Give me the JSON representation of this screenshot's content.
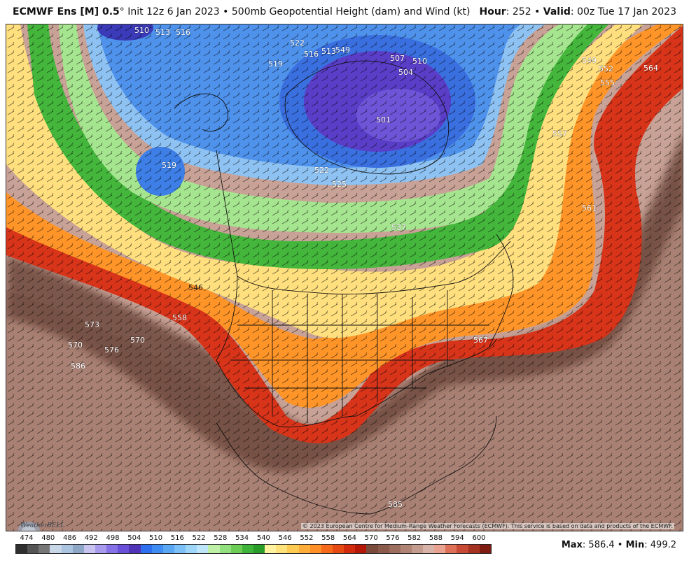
{
  "header": {
    "model": "ECMWF Ens [M] 0.5",
    "degree": "°",
    "init": "Init 12z 6 Jan 2023",
    "bullet1": "•",
    "product": "500mb Geopotential Height (dam) and Wind (kt)",
    "hour_label": "Hour",
    "hour_value": ": 252",
    "bullet2": "•",
    "valid_label": "Valid",
    "valid_value": ": 00z Tue 17 Jan 2023"
  },
  "map": {
    "contour_labels": [
      "510",
      "513",
      "516",
      "522",
      "516",
      "513",
      "507",
      "510",
      "504",
      "519",
      "501",
      "519",
      "522",
      "525",
      "537",
      "546",
      "558",
      "573",
      "570",
      "576",
      "570",
      "586",
      "567",
      "549",
      "552",
      "555",
      "564",
      "557",
      "561",
      "585",
      "549"
    ],
    "copyright": "© 2023 European Centre for Medium-Range Weather Forecasts (ECMWF). This service is based on data and products of the ECMWF.",
    "logo_text": "WeatherBELL"
  },
  "colorbar": {
    "ticks": [
      "474",
      "480",
      "486",
      "492",
      "498",
      "504",
      "510",
      "516",
      "522",
      "528",
      "534",
      "540",
      "546",
      "552",
      "558",
      "564",
      "570",
      "576",
      "582",
      "588",
      "594",
      "600"
    ],
    "colors": [
      "#2f2f2f",
      "#555555",
      "#777777",
      "#c8d7e8",
      "#aac3de",
      "#8ea7c6",
      "#c9c3f0",
      "#a89bee",
      "#8672e6",
      "#6a4fd8",
      "#4f34b8",
      "#2e6ff0",
      "#3f8df2",
      "#5aa7f4",
      "#7cc0f7",
      "#9ed6fa",
      "#bde6fb",
      "#bff0a8",
      "#93e07f",
      "#6ccc56",
      "#3fb43a",
      "#2a9c2a",
      "#fff3a0",
      "#ffe27a",
      "#ffca52",
      "#ffad38",
      "#ff8f26",
      "#f56a1a",
      "#e64a12",
      "#d22a0c",
      "#b51706",
      "#7a4a3a",
      "#8a5a4a",
      "#9c6e5e",
      "#af8474",
      "#c49c8e",
      "#d8b4a8",
      "#e8a28f",
      "#dd7056",
      "#c84a34",
      "#a63222",
      "#7e1c12"
    ],
    "max_label": "Max",
    "max_value": ": 586.4",
    "min_label": "Min",
    "min_value": ": 499.2",
    "bullet": "•"
  },
  "colors": {
    "low_center": "#4526b8",
    "deep_blue": "#3a6fe0",
    "light_blue": "#8fc4f4",
    "green": "#3fae3a",
    "light_green": "#a9e69a",
    "yellow": "#ffeb9a",
    "orange": "#ffad38",
    "red": "#e3320f",
    "brown_dark": "#6b4a3e",
    "brown": "#a37e70",
    "brown_light": "#d2aea2"
  }
}
